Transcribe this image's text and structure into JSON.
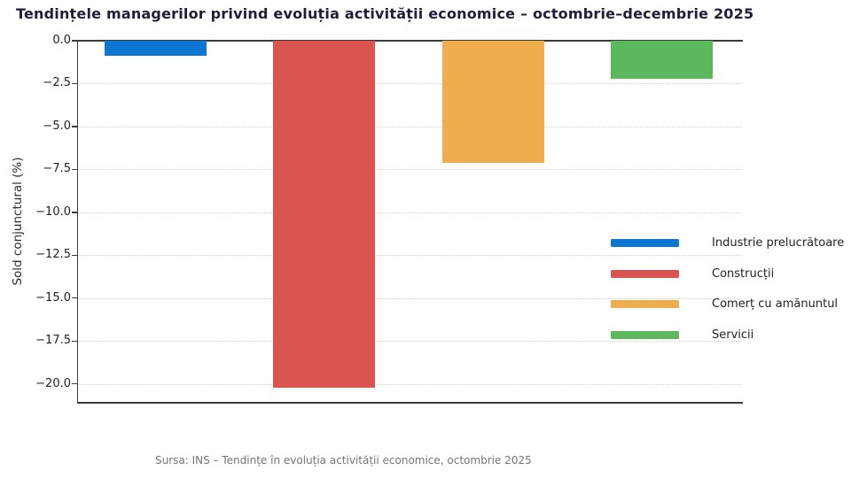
{
  "chart_data": {
    "type": "bar",
    "title": "Tendințele managerilor privind evoluția activității economice – octombrie–decembrie 2025",
    "ylabel": "Sold conjunctural (%)",
    "xlabel": "",
    "categories": [
      "Industrie prelucrătoare",
      "Construcții",
      "Comerț cu amănuntul",
      "Servicii"
    ],
    "values": [
      -0.9,
      -20.2,
      -7.1,
      -2.2
    ],
    "bar_colors": [
      "#0d76d3",
      "#d9534f",
      "#f0ad4e",
      "#5cb85c"
    ],
    "ylim": [
      -21.1,
      0
    ],
    "yticks": [
      0,
      -2.5,
      -5,
      -7.5,
      -10,
      -12.5,
      -15,
      -17.5,
      -20
    ],
    "ytick_labels": [
      "0.0",
      "−2.5",
      "−5.0",
      "−7.5",
      "−10.0",
      "−12.5",
      "−15.0",
      "−17.5",
      "−20.0"
    ],
    "grid": true,
    "gridline_style": "dotted",
    "legend_position": "center-right",
    "legend": {
      "entries": [
        {
          "label": "Industrie prelucrătoare",
          "color": "#0d76d3"
        },
        {
          "label": "Construcții",
          "color": "#d9534f"
        },
        {
          "label": "Comerț cu amănuntul",
          "color": "#f0ad4e"
        },
        {
          "label": "Servicii",
          "color": "#5cb85c"
        }
      ]
    }
  },
  "source_note": "Sursa: INS – Tendințe în evoluția activității economice, octombrie 2025",
  "colors": {
    "title": "#1e1e3a",
    "axis_spine": "#3a3a3a",
    "gridline": "#d2d2d2",
    "tick_label": "#222222",
    "source_text": "#757575",
    "background": "#ffffff"
  }
}
